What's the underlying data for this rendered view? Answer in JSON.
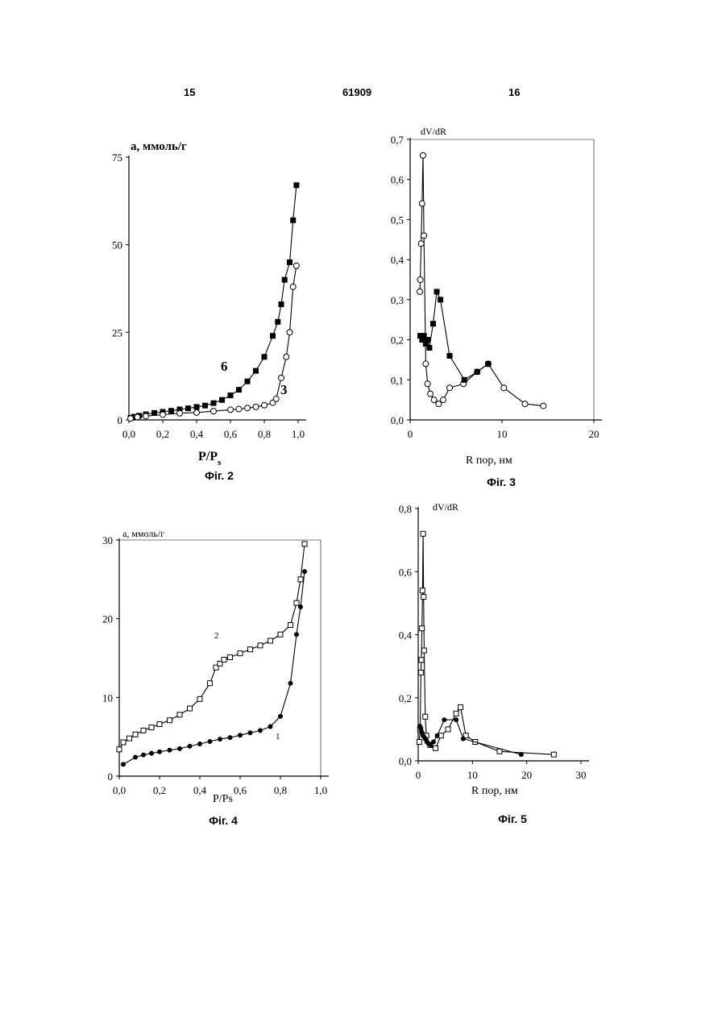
{
  "header": {
    "left_page": "15",
    "number": "61909",
    "right_page": "16"
  },
  "chart_data": [
    {
      "id": "fig2",
      "type": "scatter",
      "caption": "Фіг. 2",
      "xlabel": "P/P",
      "xlabel_sub": "s",
      "ylabel": "a, ммоль/г",
      "xlim": [
        0,
        1.0
      ],
      "ylim": [
        0,
        75
      ],
      "xticks": [
        "0,0",
        "0,2",
        "0,4",
        "0,6",
        "0,8",
        "1,0"
      ],
      "xtick_values": [
        0,
        0.2,
        0.4,
        0.6,
        0.8,
        1.0
      ],
      "yticks": [
        "0",
        "25",
        "50",
        "75"
      ],
      "ytick_values": [
        0,
        25,
        50,
        75
      ],
      "grid": false,
      "legend": "none",
      "annotations": [
        {
          "text": "6",
          "x": 0.6,
          "y": 15
        },
        {
          "text": "3",
          "x": 0.93,
          "y": 8
        }
      ],
      "series": [
        {
          "name": "6",
          "marker": "filled-square",
          "x": [
            0.01,
            0.03,
            0.06,
            0.1,
            0.15,
            0.2,
            0.25,
            0.3,
            0.35,
            0.4,
            0.45,
            0.5,
            0.55,
            0.6,
            0.65,
            0.7,
            0.75,
            0.8,
            0.85,
            0.88,
            0.9,
            0.92,
            0.95,
            0.97,
            0.99
          ],
          "y": [
            0.6,
            0.9,
            1.2,
            1.6,
            2,
            2.3,
            2.6,
            3,
            3.3,
            3.7,
            4.1,
            4.8,
            5.7,
            7,
            8.6,
            11,
            14,
            18,
            24,
            28,
            33,
            40,
            45,
            57,
            67
          ]
        },
        {
          "name": "3",
          "marker": "open-circle",
          "x": [
            0.01,
            0.05,
            0.1,
            0.2,
            0.3,
            0.4,
            0.5,
            0.6,
            0.65,
            0.7,
            0.75,
            0.8,
            0.85,
            0.87,
            0.9,
            0.93,
            0.95,
            0.97,
            0.99
          ],
          "y": [
            0.4,
            0.8,
            1.1,
            1.5,
            1.9,
            2.1,
            2.5,
            2.9,
            3.1,
            3.4,
            3.7,
            4.2,
            4.9,
            6,
            12,
            18,
            25,
            38,
            44
          ]
        }
      ]
    },
    {
      "id": "fig3",
      "type": "scatter",
      "caption": "Фіг. 3",
      "xlabel": "R пор, нм",
      "ylabel": "dV/dR",
      "xlim": [
        0,
        20
      ],
      "ylim": [
        0,
        0.7
      ],
      "xticks": [
        "0",
        "10",
        "20"
      ],
      "xtick_values": [
        0,
        10,
        20
      ],
      "yticks": [
        "0,0",
        "0,1",
        "0,2",
        "0,3",
        "0,4",
        "0,5",
        "0,6",
        "0,7"
      ],
      "ytick_values": [
        0,
        0.1,
        0.2,
        0.3,
        0.4,
        0.5,
        0.6,
        0.7
      ],
      "grid": false,
      "legend": "none",
      "annotations": [],
      "series": [
        {
          "marker": "open-circle",
          "x": [
            1.05,
            1.1,
            1.2,
            1.3,
            1.4,
            1.5,
            1.7,
            1.9,
            2.2,
            2.6,
            3.1,
            3.6,
            4.3,
            5.8,
            7.3,
            8.5,
            10.2,
            12.5,
            14.5
          ],
          "y": [
            0.32,
            0.35,
            0.44,
            0.54,
            0.66,
            0.46,
            0.14,
            0.09,
            0.065,
            0.05,
            0.04,
            0.05,
            0.08,
            0.09,
            0.12,
            0.14,
            0.08,
            0.04,
            0.035
          ]
        },
        {
          "marker": "filled-square",
          "x": [
            1.1,
            1.3,
            1.5,
            1.7,
            1.9,
            2.1,
            2.5,
            2.9,
            3.3,
            4.3,
            5.9,
            7.3,
            8.5
          ],
          "y": [
            0.21,
            0.2,
            0.21,
            0.19,
            0.2,
            0.18,
            0.24,
            0.32,
            0.3,
            0.16,
            0.1,
            0.12,
            0.14
          ]
        }
      ]
    },
    {
      "id": "fig4",
      "type": "scatter",
      "caption": "Фіг. 4",
      "xlabel": "P/Ps",
      "ylabel": "a, ммоль/г",
      "xlim": [
        0,
        1.0
      ],
      "ylim": [
        0,
        30
      ],
      "xticks": [
        "0,0",
        "0,2",
        "0,4",
        "0,6",
        "0,8",
        "1,0"
      ],
      "xtick_values": [
        0,
        0.2,
        0.4,
        0.6,
        0.8,
        1.0
      ],
      "yticks": [
        "0",
        "10",
        "20",
        "30"
      ],
      "ytick_values": [
        0,
        10,
        20,
        30
      ],
      "grid": false,
      "legend": "none",
      "annotations": [
        {
          "text": "2",
          "x": 0.25,
          "y": 17.5
        },
        {
          "text": "1",
          "x": 0.8,
          "y": 4.5
        }
      ],
      "series": [
        {
          "name": "2",
          "marker": "open-square",
          "x": [
            0.0,
            0.02,
            0.05,
            0.08,
            0.12,
            0.16,
            0.2,
            0.25,
            0.3,
            0.35,
            0.4,
            0.45,
            0.48,
            0.5,
            0.52,
            0.55,
            0.6,
            0.65,
            0.7,
            0.75,
            0.8,
            0.85,
            0.88,
            0.9,
            0.92
          ],
          "y": [
            3.4,
            4.3,
            4.8,
            5.3,
            5.8,
            6.2,
            6.6,
            7.1,
            7.8,
            8.6,
            9.8,
            11.8,
            13.8,
            14.3,
            14.8,
            15.1,
            15.6,
            16.1,
            16.6,
            17.2,
            18,
            19.2,
            22,
            25,
            29.5
          ]
        },
        {
          "name": "1",
          "marker": "filled-circle",
          "x": [
            0.02,
            0.08,
            0.12,
            0.16,
            0.2,
            0.25,
            0.3,
            0.35,
            0.4,
            0.45,
            0.5,
            0.55,
            0.6,
            0.65,
            0.7,
            0.75,
            0.8,
            0.85,
            0.88,
            0.9,
            0.92
          ],
          "y": [
            1.5,
            2.4,
            2.7,
            2.9,
            3.1,
            3.3,
            3.5,
            3.8,
            4.1,
            4.4,
            4.7,
            4.9,
            5.2,
            5.5,
            5.8,
            6.3,
            7.6,
            11.8,
            18,
            21.5,
            26
          ]
        }
      ]
    },
    {
      "id": "fig5",
      "type": "scatter",
      "caption": "Фіг. 5",
      "xlabel": "R пор, нм",
      "ylabel": "dV/dR",
      "xlim": [
        0,
        30
      ],
      "ylim": [
        0,
        0.8
      ],
      "xticks": [
        "0",
        "10",
        "20",
        "30"
      ],
      "xtick_values": [
        0,
        10,
        20,
        30
      ],
      "yticks": [
        "0,0",
        "0,2",
        "0,4",
        "0,6",
        "0,8"
      ],
      "ytick_values": [
        0,
        0.2,
        0.4,
        0.6,
        0.8
      ],
      "grid": false,
      "legend": "none",
      "annotations": [],
      "series": [
        {
          "marker": "open-square",
          "x": [
            0.2,
            0.35,
            0.5,
            0.6,
            0.7,
            0.8,
            0.9,
            1.0,
            1.1,
            1.3,
            1.5,
            2.2,
            3.2,
            4.2,
            5.5,
            7,
            7.8,
            8.8,
            10.5,
            15,
            25
          ],
          "y": [
            0.06,
            0.1,
            0.28,
            0.32,
            0.42,
            0.54,
            0.72,
            0.52,
            0.35,
            0.14,
            0.08,
            0.05,
            0.04,
            0.08,
            0.1,
            0.15,
            0.17,
            0.08,
            0.06,
            0.03,
            0.02
          ]
        },
        {
          "marker": "filled-circle",
          "x": [
            0.3,
            0.5,
            0.7,
            0.9,
            1.1,
            1.3,
            1.6,
            1.9,
            2.3,
            2.8,
            3.5,
            4.8,
            7,
            8.3,
            19
          ],
          "y": [
            0.11,
            0.1,
            0.09,
            0.08,
            0.075,
            0.07,
            0.06,
            0.055,
            0.05,
            0.06,
            0.08,
            0.13,
            0.13,
            0.07,
            0.02
          ]
        }
      ]
    }
  ]
}
